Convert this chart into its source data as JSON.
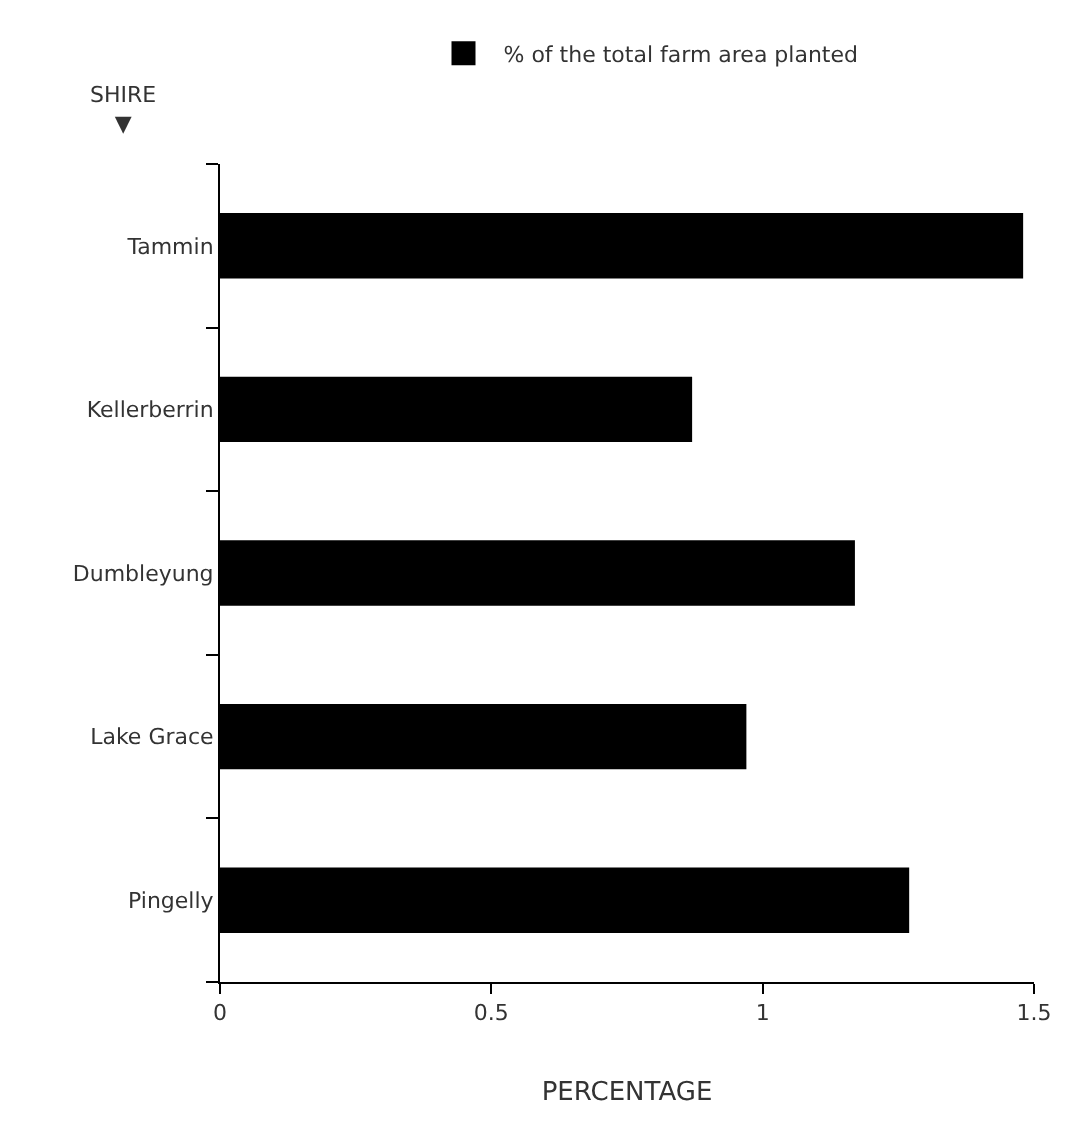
{
  "chart_data": {
    "type": "bar",
    "orientation": "horizontal",
    "ylabel": "SHIRE ▼",
    "xlabel": "PERCENTAGE",
    "categories": [
      "Tammin",
      "Kellerberrin",
      "Dumbleyung",
      "Lake Grace",
      "Pingelly"
    ],
    "series": [
      {
        "name": "% of the total farm area planted",
        "color": "#000000",
        "values": [
          1.48,
          0.87,
          1.17,
          0.97,
          1.27
        ]
      }
    ],
    "xlim": [
      0,
      1.5
    ],
    "xticks": [
      0,
      0.5,
      1,
      1.5
    ],
    "legend": "top"
  }
}
